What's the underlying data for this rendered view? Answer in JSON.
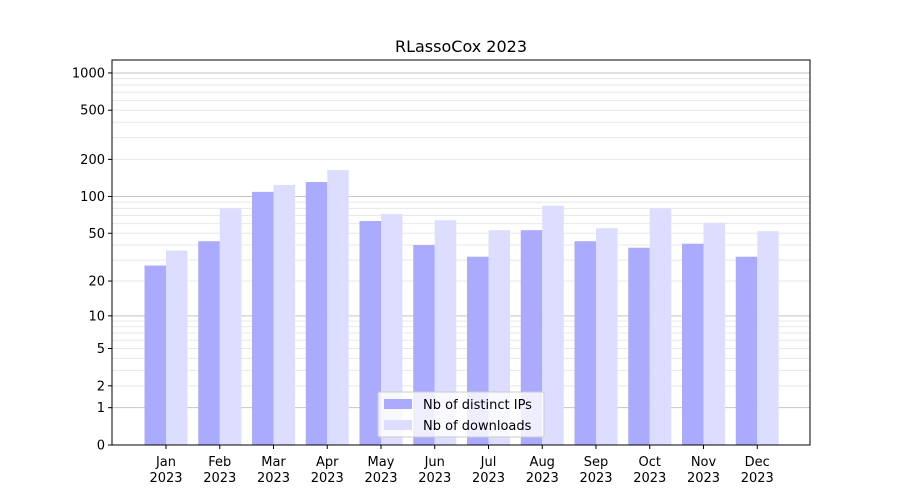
{
  "chart_data": {
    "type": "bar",
    "title": "RLassoCox 2023",
    "xlabel": "",
    "ylabel": "",
    "yscale": "log(1+y)",
    "ylim": [
      0,
      1272
    ],
    "yticks": [
      0,
      1,
      2,
      5,
      10,
      20,
      50,
      100,
      200,
      500,
      1000
    ],
    "grid": true,
    "legend_position": "bottom-center",
    "categories": [
      "Jan\n2023",
      "Feb\n2023",
      "Mar\n2023",
      "Apr\n2023",
      "May\n2023",
      "Jun\n2023",
      "Jul\n2023",
      "Aug\n2023",
      "Sep\n2023",
      "Oct\n2023",
      "Nov\n2023",
      "Dec\n2023"
    ],
    "series": [
      {
        "name": "Nb of distinct IPs",
        "color": "#aaaaff",
        "values": [
          27,
          43,
          109,
          131,
          63,
          40,
          32,
          53,
          43,
          38,
          41,
          32
        ]
      },
      {
        "name": "Nb of downloads",
        "color": "#ddddff",
        "values": [
          36,
          80,
          124,
          164,
          72,
          64,
          53,
          84,
          55,
          80,
          61,
          52
        ]
      }
    ]
  }
}
